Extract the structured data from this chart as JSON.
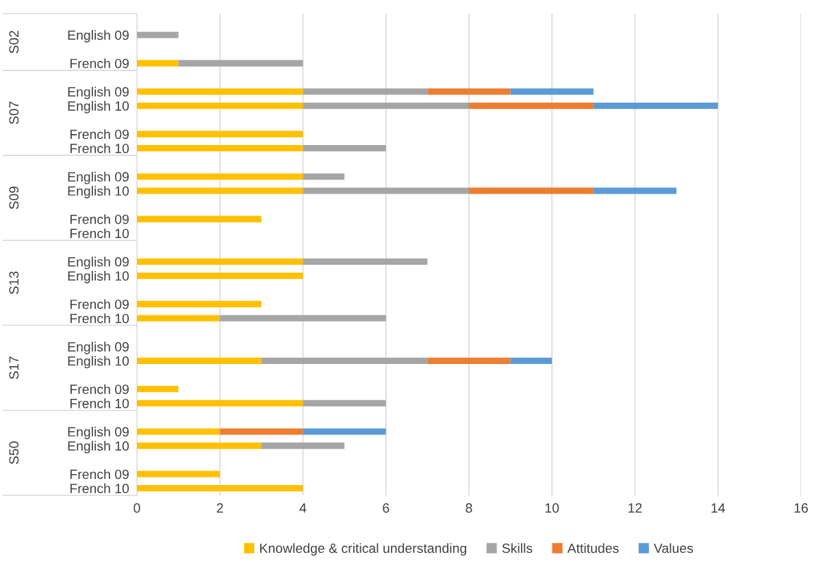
{
  "chart_data": {
    "type": "bar",
    "orientation": "horizontal",
    "stacked": true,
    "categories": [
      null,
      "English 09",
      null,
      "French 09",
      null,
      "English 09",
      "English 10",
      null,
      "French 09",
      "French 10",
      null,
      "English 09",
      "English 10",
      null,
      "French 09",
      "French 10",
      null,
      "English 09",
      "English 10",
      null,
      "French 09",
      "French 10",
      null,
      "English 09",
      "English 10",
      null,
      "French 09",
      "French 10",
      null,
      "English 09",
      "English 10",
      null,
      "French 09",
      "French 10"
    ],
    "series": [
      {
        "name": "Knowledge & critical understanding",
        "color": "#ffc000",
        "values": [
          0,
          0,
          0,
          1,
          0,
          4,
          4,
          0,
          4,
          4,
          0,
          4,
          4,
          0,
          3,
          0,
          0,
          4,
          4,
          0,
          3,
          2,
          0,
          0,
          3,
          0,
          1,
          4,
          0,
          2,
          3,
          0,
          2,
          4
        ]
      },
      {
        "name": "Skills",
        "color": "#a5a5a5",
        "values": [
          0,
          1,
          0,
          3,
          0,
          3,
          4,
          0,
          0,
          2,
          0,
          1,
          4,
          0,
          0,
          0,
          0,
          3,
          0,
          0,
          0,
          4,
          0,
          0,
          4,
          0,
          0,
          2,
          0,
          0,
          2,
          0,
          0,
          0
        ]
      },
      {
        "name": "Attitudes",
        "color": "#ed7d31",
        "values": [
          0,
          0,
          0,
          0,
          0,
          2,
          3,
          0,
          0,
          0,
          0,
          0,
          3,
          0,
          0,
          0,
          0,
          0,
          0,
          0,
          0,
          0,
          0,
          0,
          2,
          0,
          0,
          0,
          0,
          2,
          0,
          0,
          0,
          0
        ]
      },
      {
        "name": "Values",
        "color": "#5b9bd5",
        "values": [
          0,
          0,
          0,
          0,
          0,
          2,
          3,
          0,
          0,
          0,
          0,
          0,
          2,
          0,
          0,
          0,
          0,
          0,
          0,
          0,
          0,
          0,
          0,
          0,
          1,
          0,
          0,
          0,
          0,
          2,
          0,
          0,
          0,
          0
        ]
      }
    ],
    "annotations": [
      "S02",
      "S07",
      "S09",
      "S13",
      "S17",
      "S50"
    ],
    "xlim": [
      0,
      16
    ],
    "xticks": [
      0,
      2,
      4,
      6,
      8,
      10,
      12,
      14,
      16
    ],
    "grid": "x",
    "legend": "bottom"
  }
}
